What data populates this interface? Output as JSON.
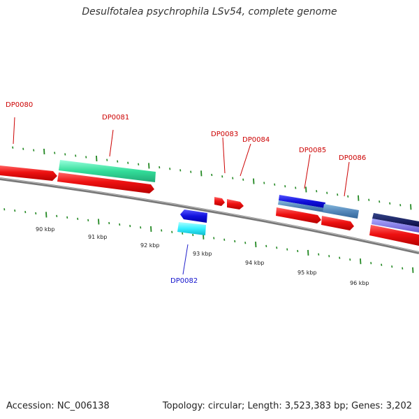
{
  "title": "Desulfotalea psychrophila LSv54, complete genome",
  "footer": {
    "accession": "Accession: NC_006138",
    "summary": "Topology: circular; Length: 3,523,383 bp; Genes: 3,202"
  },
  "colors": {
    "forward_gene": "#ee1111",
    "reverse_gene_label": "#1111cc",
    "green_feature": "#33dd99",
    "backbone": "#888888",
    "ticks": "#228822"
  },
  "kbp_labels": [
    "90 kbp",
    "91 kbp",
    "92 kbp",
    "93 kbp",
    "94 kbp",
    "95 kbp",
    "96 kbp"
  ],
  "genes": [
    {
      "id": "DP0080",
      "strand": "forward"
    },
    {
      "id": "DP0081",
      "strand": "forward"
    },
    {
      "id": "DP0082",
      "strand": "reverse"
    },
    {
      "id": "DP0083",
      "strand": "forward"
    },
    {
      "id": "DP0084",
      "strand": "forward"
    },
    {
      "id": "DP0085",
      "strand": "forward"
    },
    {
      "id": "DP0086",
      "strand": "forward"
    }
  ]
}
